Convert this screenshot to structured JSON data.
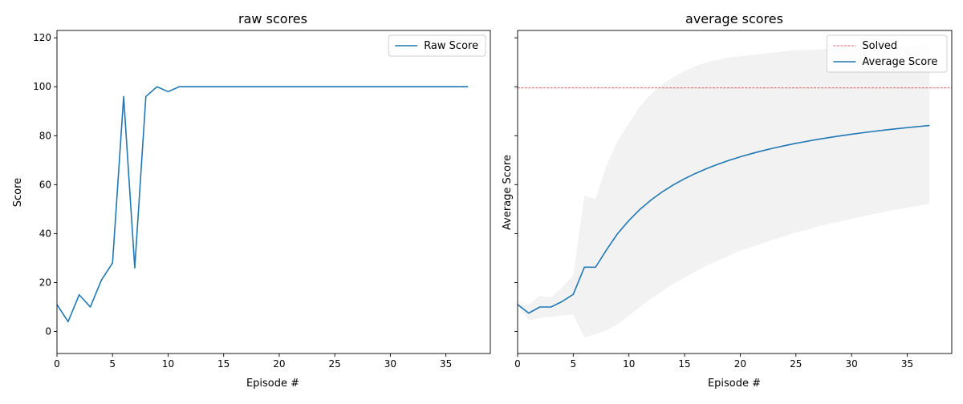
{
  "chart_data": [
    {
      "type": "line",
      "title": "raw scores",
      "xlabel": "Episode #",
      "ylabel": "Score",
      "xlim": [
        0,
        39
      ],
      "ylim": [
        -9,
        123
      ],
      "xticks": [
        0,
        5,
        10,
        15,
        20,
        25,
        30,
        35
      ],
      "yticks": [
        0,
        20,
        40,
        60,
        80,
        100,
        120
      ],
      "legend_position": "top-right",
      "grid": false,
      "series": [
        {
          "name": "Raw Score",
          "color": "#1f77b4",
          "x": [
            0,
            1,
            2,
            3,
            4,
            5,
            6,
            7,
            8,
            9,
            10,
            11,
            12,
            13,
            14,
            15,
            16,
            17,
            18,
            19,
            20,
            21,
            22,
            23,
            24,
            25,
            26,
            27,
            28,
            29,
            30,
            31,
            32,
            33,
            34,
            35,
            36,
            37
          ],
          "y": [
            11,
            4,
            15,
            10,
            21,
            28,
            96,
            26,
            96,
            100,
            98,
            100,
            100,
            100,
            100,
            100,
            100,
            100,
            100,
            100,
            100,
            100,
            100,
            100,
            100,
            100,
            100,
            100,
            100,
            100,
            100,
            100,
            100,
            100,
            100,
            100,
            100,
            100
          ]
        }
      ]
    },
    {
      "type": "line",
      "title": "average scores",
      "xlabel": "Episode #",
      "ylabel": "Average Score",
      "xlim": [
        0,
        39
      ],
      "ylim": [
        -9,
        123
      ],
      "xticks": [
        0,
        5,
        10,
        15,
        20,
        25,
        30,
        35
      ],
      "yticks": [
        0,
        20,
        40,
        60,
        80,
        100,
        120
      ],
      "show_ytick_labels": false,
      "legend_position": "top-right",
      "grid": false,
      "threshold": {
        "name": "Solved",
        "y": 99.5,
        "color": "#d62728",
        "style": "dashed"
      },
      "band": {
        "color": "#f2f2f2",
        "x": [
          0,
          1,
          2,
          3,
          4,
          5,
          6,
          7,
          8,
          9,
          10,
          11,
          12,
          13,
          14,
          15,
          16,
          17,
          18,
          19,
          20,
          21,
          22,
          23,
          24,
          25,
          26,
          27,
          28,
          29,
          30,
          31,
          32,
          33,
          34,
          35,
          36,
          37
        ],
        "upper": [
          11,
          11,
          14.5,
          14,
          18,
          23,
          55.5,
          54,
          68,
          78,
          85,
          92,
          97,
          101,
          104,
          106.5,
          108.5,
          110,
          111,
          112,
          112.5,
          113,
          113.5,
          114,
          114.5,
          115,
          115,
          115.3,
          115.5,
          115.7,
          116,
          116,
          116.2,
          116.4,
          116.5,
          116.7,
          116.8,
          117
        ],
        "lower": [
          11,
          4.5,
          5.5,
          6,
          6.5,
          7,
          -2.5,
          -1,
          0.5,
          3,
          6.5,
          10,
          13.5,
          16.5,
          19.5,
          22,
          24.5,
          27,
          29,
          31,
          33,
          34.5,
          36,
          37.5,
          39,
          40.5,
          41.5,
          43,
          44,
          45,
          46,
          47,
          48,
          49,
          49.8,
          50.6,
          51.4,
          52.2
        ]
      },
      "series": [
        {
          "name": "Average Score",
          "color": "#1f77b4",
          "x": [
            0,
            1,
            2,
            3,
            4,
            5,
            6,
            7,
            8,
            9,
            10,
            11,
            12,
            13,
            14,
            15,
            16,
            17,
            18,
            19,
            20,
            21,
            22,
            23,
            24,
            25,
            26,
            27,
            28,
            29,
            30,
            31,
            32,
            33,
            34,
            35,
            36,
            37
          ],
          "y": [
            11,
            7.5,
            10,
            10,
            12.25,
            15.17,
            26.29,
            26.25,
            33.44,
            40.1,
            45.36,
            49.92,
            53.77,
            57.07,
            59.93,
            62.42,
            64.63,
            66.59,
            68.35,
            69.93,
            71.36,
            72.66,
            73.85,
            74.94,
            75.94,
            76.87,
            77.72,
            78.52,
            79.26,
            79.95,
            80.6,
            81.2,
            81.77,
            82.31,
            82.81,
            83.29,
            83.74,
            84.16
          ]
        }
      ]
    }
  ]
}
